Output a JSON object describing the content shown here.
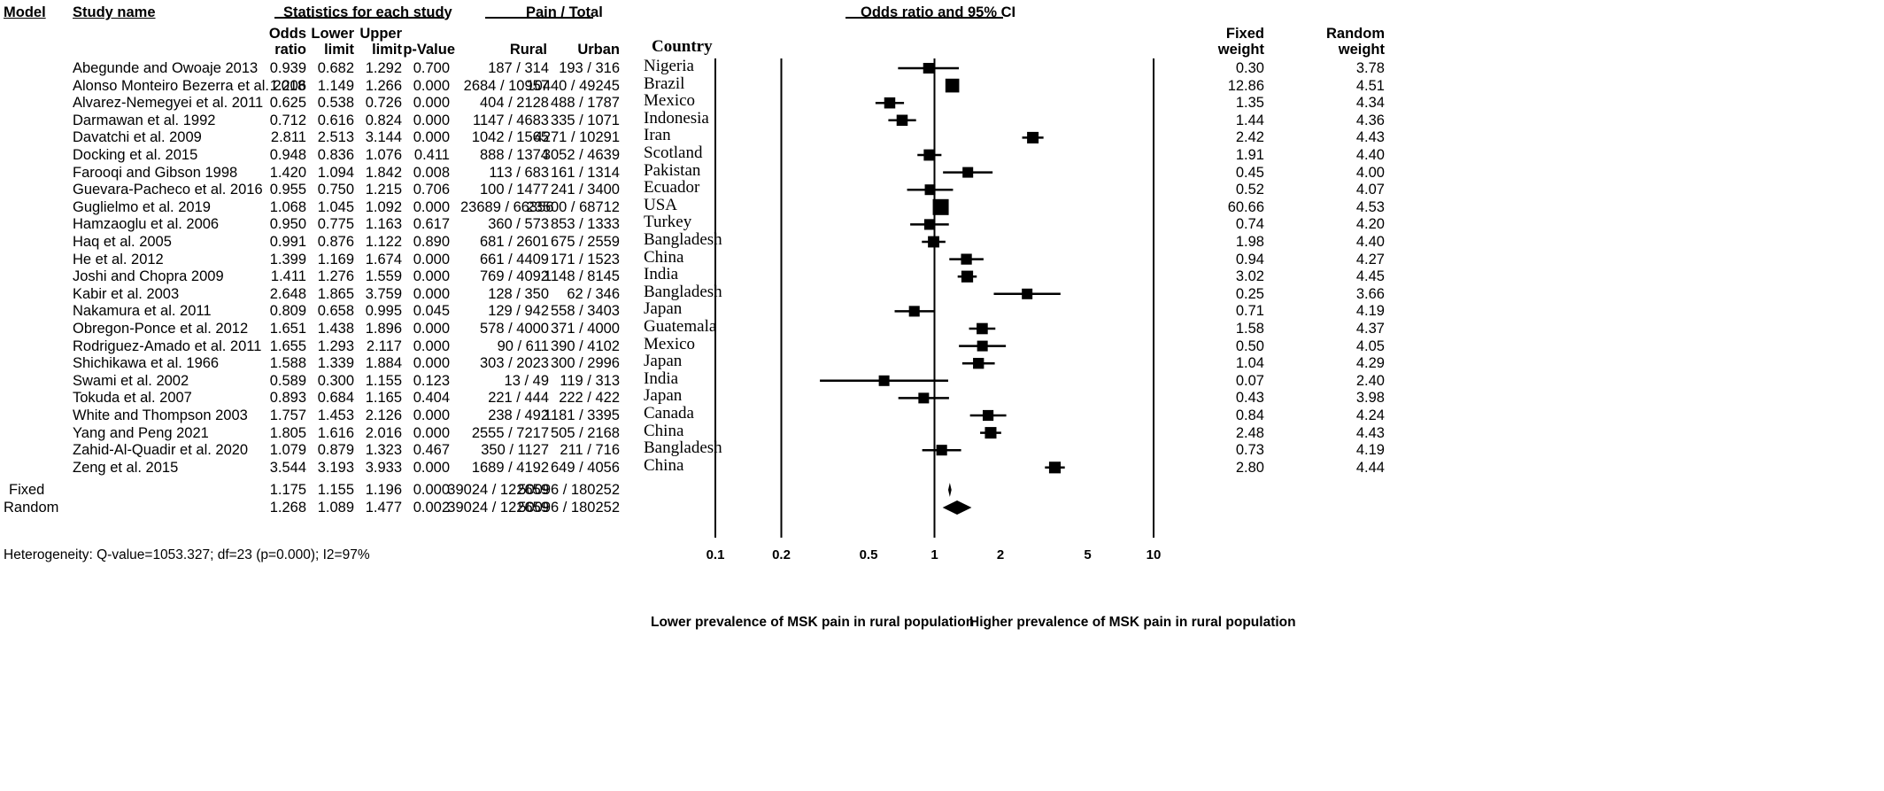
{
  "header": {
    "model": "Model",
    "study_name": "Study name",
    "stats_group": "Statistics for each study",
    "pain_group": "Pain / Total",
    "or_group": "Odds ratio and 95% CI",
    "odds_ratio_1": "Odds",
    "odds_ratio_2": "ratio",
    "lower_1": "Lower",
    "lower_2": "limit",
    "upper_1": "Upper",
    "upper_2": "limit",
    "pvalue": "p-Value",
    "rural": "Rural",
    "urban": "Urban",
    "country": "Country",
    "fixed_weight_1": "Fixed",
    "fixed_weight_2": "weight",
    "random_weight_1": "Random",
    "random_weight_2": "weight"
  },
  "studies": [
    {
      "name": "Abegunde and Owoaje 2013",
      "or": "0.939",
      "lower": "0.682",
      "upper": "1.292",
      "p": "0.700",
      "rural": "187 / 314",
      "urban": "193 / 316",
      "country": "Nigeria",
      "fixed": "0.30",
      "random": "3.78"
    },
    {
      "name": "Alonso Monteiro Bezerra et al. 2018",
      "or": "1.206",
      "lower": "1.149",
      "upper": "1.266",
      "p": "0.000",
      "rural": "2684 / 10957",
      "urban": "10440 / 49245",
      "country": "Brazil",
      "fixed": "12.86",
      "random": "4.51"
    },
    {
      "name": "Alvarez-Nemegyei et al. 2011",
      "or": "0.625",
      "lower": "0.538",
      "upper": "0.726",
      "p": "0.000",
      "rural": "404 / 2128",
      "urban": "488 / 1787",
      "country": "Mexico",
      "fixed": "1.35",
      "random": "4.34"
    },
    {
      "name": "Darmawan et al. 1992",
      "or": "0.712",
      "lower": "0.616",
      "upper": "0.824",
      "p": "0.000",
      "rural": "1147 / 4683",
      "urban": "335 / 1071",
      "country": "Indonesia",
      "fixed": "1.44",
      "random": "4.36"
    },
    {
      "name": "Davatchi et al. 2009",
      "or": "2.811",
      "lower": "2.513",
      "upper": "3.144",
      "p": "0.000",
      "rural": "1042 / 1565",
      "urban": "4271 / 10291",
      "country": "Iran",
      "fixed": "2.42",
      "random": "4.43"
    },
    {
      "name": "Docking et al. 2015",
      "or": "0.948",
      "lower": "0.836",
      "upper": "1.076",
      "p": "0.411",
      "rural": "888 / 1374",
      "urban": "3052 / 4639",
      "country": "Scotland",
      "fixed": "1.91",
      "random": "4.40"
    },
    {
      "name": "Farooqi and Gibson 1998",
      "or": "1.420",
      "lower": "1.094",
      "upper": "1.842",
      "p": "0.008",
      "rural": "113 / 683",
      "urban": "161 / 1314",
      "country": "Pakistan",
      "fixed": "0.45",
      "random": "4.00"
    },
    {
      "name": "Guevara-Pacheco et al. 2016",
      "or": "0.955",
      "lower": "0.750",
      "upper": "1.215",
      "p": "0.706",
      "rural": "100 / 1477",
      "urban": "241 / 3400",
      "country": "Ecuador",
      "fixed": "0.52",
      "random": "4.07"
    },
    {
      "name": "Guglielmo et al. 2019",
      "or": "1.068",
      "lower": "1.045",
      "upper": "1.092",
      "p": "0.000",
      "rural": "23689 / 66356",
      "urban": "23500 / 68712",
      "country": "USA",
      "fixed": "60.66",
      "random": "4.53"
    },
    {
      "name": "Hamzaoglu et al. 2006",
      "or": "0.950",
      "lower": "0.775",
      "upper": "1.163",
      "p": "0.617",
      "rural": "360 / 573",
      "urban": "853 / 1333",
      "country": "Turkey",
      "fixed": "0.74",
      "random": "4.20"
    },
    {
      "name": "Haq et al. 2005",
      "or": "0.991",
      "lower": "0.876",
      "upper": "1.122",
      "p": "0.890",
      "rural": "681 / 2601",
      "urban": "675 / 2559",
      "country": "Bangladesh",
      "fixed": "1.98",
      "random": "4.40"
    },
    {
      "name": "He et al. 2012",
      "or": "1.399",
      "lower": "1.169",
      "upper": "1.674",
      "p": "0.000",
      "rural": "661 / 4409",
      "urban": "171 / 1523",
      "country": "China",
      "fixed": "0.94",
      "random": "4.27"
    },
    {
      "name": "Joshi and Chopra 2009",
      "or": "1.411",
      "lower": "1.276",
      "upper": "1.559",
      "p": "0.000",
      "rural": "769 / 4092",
      "urban": "1148 / 8145",
      "country": "India",
      "fixed": "3.02",
      "random": "4.45"
    },
    {
      "name": "Kabir et al. 2003",
      "or": "2.648",
      "lower": "1.865",
      "upper": "3.759",
      "p": "0.000",
      "rural": "128 / 350",
      "urban": "62 / 346",
      "country": "Bangladesh",
      "fixed": "0.25",
      "random": "3.66"
    },
    {
      "name": "Nakamura et al. 2011",
      "or": "0.809",
      "lower": "0.658",
      "upper": "0.995",
      "p": "0.045",
      "rural": "129 / 942",
      "urban": "558 / 3403",
      "country": "Japan",
      "fixed": "0.71",
      "random": "4.19"
    },
    {
      "name": "Obregon-Ponce et al. 2012",
      "or": "1.651",
      "lower": "1.438",
      "upper": "1.896",
      "p": "0.000",
      "rural": "578 / 4000",
      "urban": "371 / 4000",
      "country": "Guatemala",
      "fixed": "1.58",
      "random": "4.37"
    },
    {
      "name": "Rodriguez-Amado et al. 2011",
      "or": "1.655",
      "lower": "1.293",
      "upper": "2.117",
      "p": "0.000",
      "rural": "90 / 611",
      "urban": "390 / 4102",
      "country": "Mexico",
      "fixed": "0.50",
      "random": "4.05"
    },
    {
      "name": "Shichikawa et al. 1966",
      "or": "1.588",
      "lower": "1.339",
      "upper": "1.884",
      "p": "0.000",
      "rural": "303 / 2023",
      "urban": "300 / 2996",
      "country": "Japan",
      "fixed": "1.04",
      "random": "4.29"
    },
    {
      "name": "Swami et al. 2002",
      "or": "0.589",
      "lower": "0.300",
      "upper": "1.155",
      "p": "0.123",
      "rural": "13 / 49",
      "urban": "119 / 313",
      "country": "India",
      "fixed": "0.07",
      "random": "2.40"
    },
    {
      "name": "Tokuda et al. 2007",
      "or": "0.893",
      "lower": "0.684",
      "upper": "1.165",
      "p": "0.404",
      "rural": "221 / 444",
      "urban": "222 / 422",
      "country": "Japan",
      "fixed": "0.43",
      "random": "3.98"
    },
    {
      "name": "White and Thompson 2003",
      "or": "1.757",
      "lower": "1.453",
      "upper": "2.126",
      "p": "0.000",
      "rural": "238 / 492",
      "urban": "1181 / 3395",
      "country": "Canada",
      "fixed": "0.84",
      "random": "4.24"
    },
    {
      "name": "Yang and Peng 2021",
      "or": "1.805",
      "lower": "1.616",
      "upper": "2.016",
      "p": "0.000",
      "rural": "2555 / 7217",
      "urban": "505 / 2168",
      "country": "China",
      "fixed": "2.48",
      "random": "4.43"
    },
    {
      "name": "Zahid-Al-Quadir et al. 2020",
      "or": "1.079",
      "lower": "0.879",
      "upper": "1.323",
      "p": "0.467",
      "rural": "350 / 1127",
      "urban": "211 / 716",
      "country": "Bangladesh",
      "fixed": "0.73",
      "random": "4.19"
    },
    {
      "name": "Zeng et al. 2015",
      "or": "3.544",
      "lower": "3.193",
      "upper": "3.933",
      "p": "0.000",
      "rural": "1689 / 4192",
      "urban": "649 / 4056",
      "country": "China",
      "fixed": "2.80",
      "random": "4.44"
    }
  ],
  "summary": [
    {
      "model": "Fixed",
      "or": "1.175",
      "lower": "1.155",
      "upper": "1.196",
      "p": "0.000",
      "rural": "39024 / 122659",
      "urban": "50096 / 180252"
    },
    {
      "model": "Random",
      "or": "1.268",
      "lower": "1.089",
      "upper": "1.477",
      "p": "0.002",
      "rural": "39024 / 122659",
      "urban": "50096 / 180252"
    }
  ],
  "footer": {
    "heterogeneity": "Heterogeneity: Q-value=1053.327; df=23 (p=0.000); I2=97%",
    "left_label": "Lower prevalence of MSK pain in rural population",
    "right_label": "Higher prevalence of MSK pain in rural population"
  },
  "chart_data": {
    "type": "forest",
    "scale": "log",
    "xlim": [
      0.1,
      10
    ],
    "reference_line": 1,
    "x_ticks": [
      "0.1",
      "0.2",
      "0.5",
      "1",
      "2",
      "5",
      "10"
    ],
    "x_tick_values": [
      0.1,
      0.2,
      0.5,
      1,
      2,
      5,
      10
    ],
    "title": "Odds ratio and 95% CI",
    "xlabel_left": "Lower prevalence of MSK pain in rural population",
    "xlabel_right": "Higher prevalence of MSK pain in rural population",
    "categories": [
      "Abegunde and Owoaje 2013",
      "Alonso Monteiro Bezerra et al. 2018",
      "Alvarez-Nemegyei et al. 2011",
      "Darmawan et al. 1992",
      "Davatchi et al. 2009",
      "Docking et al. 2015",
      "Farooqi and Gibson 1998",
      "Guevara-Pacheco et al. 2016",
      "Guglielmo et al. 2019",
      "Hamzaoglu et al. 2006",
      "Haq et al. 2005",
      "He et al. 2012",
      "Joshi and Chopra 2009",
      "Kabir et al. 2003",
      "Nakamura et al. 2011",
      "Obregon-Ponce et al. 2012",
      "Rodriguez-Amado et al. 2011",
      "Shichikawa et al. 1966",
      "Swami et al. 2002",
      "Tokuda et al. 2007",
      "White and Thompson 2003",
      "Yang and Peng 2021",
      "Zahid-Al-Quadir et al. 2020",
      "Zeng et al. 2015"
    ],
    "odds_ratio": [
      0.939,
      1.206,
      0.625,
      0.712,
      2.811,
      0.948,
      1.42,
      0.955,
      1.068,
      0.95,
      0.991,
      1.399,
      1.411,
      2.648,
      0.809,
      1.651,
      1.655,
      1.588,
      0.589,
      0.893,
      1.757,
      1.805,
      1.079,
      3.544
    ],
    "lower": [
      0.682,
      1.149,
      0.538,
      0.616,
      2.513,
      0.836,
      1.094,
      0.75,
      1.045,
      0.775,
      0.876,
      1.169,
      1.276,
      1.865,
      0.658,
      1.438,
      1.293,
      1.339,
      0.3,
      0.684,
      1.453,
      1.616,
      0.879,
      3.193
    ],
    "upper": [
      1.292,
      1.266,
      0.726,
      0.824,
      3.144,
      1.076,
      1.842,
      1.215,
      1.092,
      1.163,
      1.122,
      1.674,
      1.559,
      3.759,
      0.995,
      1.896,
      2.117,
      1.884,
      1.155,
      1.165,
      2.126,
      2.016,
      1.323,
      3.933
    ],
    "summary": [
      {
        "name": "Fixed",
        "or": 1.175,
        "lower": 1.155,
        "upper": 1.196
      },
      {
        "name": "Random",
        "or": 1.268,
        "lower": 1.089,
        "upper": 1.477
      }
    ]
  }
}
